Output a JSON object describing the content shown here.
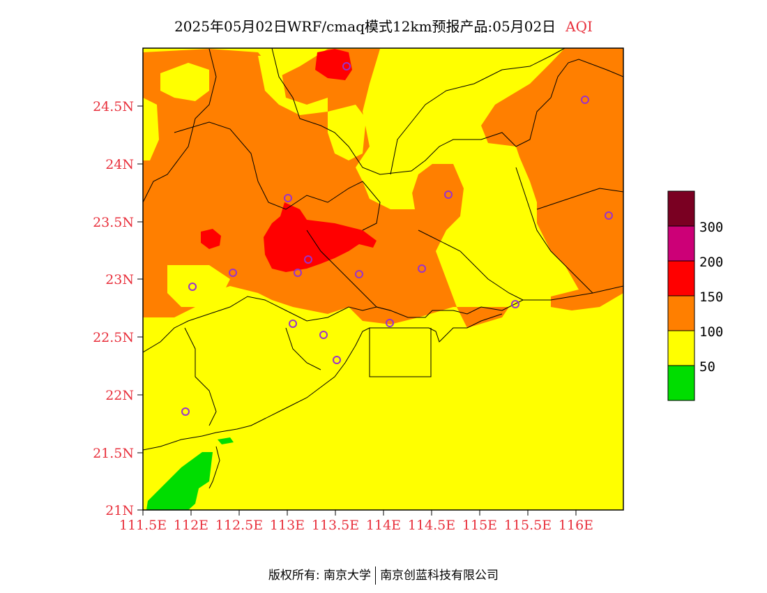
{
  "title": {
    "main": "2025年05月02日WRF/cmaq模式12km预报产品:05月02日",
    "variable": "AQI"
  },
  "map": {
    "lat_labels": [
      "24.5N",
      "24N",
      "23.5N",
      "23N",
      "22.5N",
      "22N",
      "21.5N",
      "21N"
    ],
    "lon_labels": [
      "111.5E",
      "112E",
      "112.5E",
      "113E",
      "113.5E",
      "114E",
      "114.5E",
      "115E",
      "115.5E",
      "116E"
    ],
    "colors": {
      "good": "#00dd00",
      "moderate": "#ffff00",
      "usg": "#ff7f00",
      "unhealthy": "#ff0000",
      "very_unhealthy": "#cc0077",
      "hazardous": "#7a0022",
      "station_marker": "#9933cc",
      "label_red": "#e8303c"
    }
  },
  "colorbar": {
    "labels": [
      "300",
      "200",
      "150",
      "100",
      "50"
    ],
    "bins": [
      {
        "min": 0,
        "max": 50,
        "color": "#00dd00"
      },
      {
        "min": 50,
        "max": 100,
        "color": "#ffff00"
      },
      {
        "min": 100,
        "max": 150,
        "color": "#ff7f00"
      },
      {
        "min": 150,
        "max": 200,
        "color": "#ff0000"
      },
      {
        "min": 200,
        "max": 300,
        "color": "#cc0077"
      },
      {
        "min": 300,
        "max": 500,
        "color": "#7a0022"
      }
    ]
  },
  "footer": {
    "left": "版权所有: 南京大学",
    "right": "南京创蓝科技有限公司"
  }
}
